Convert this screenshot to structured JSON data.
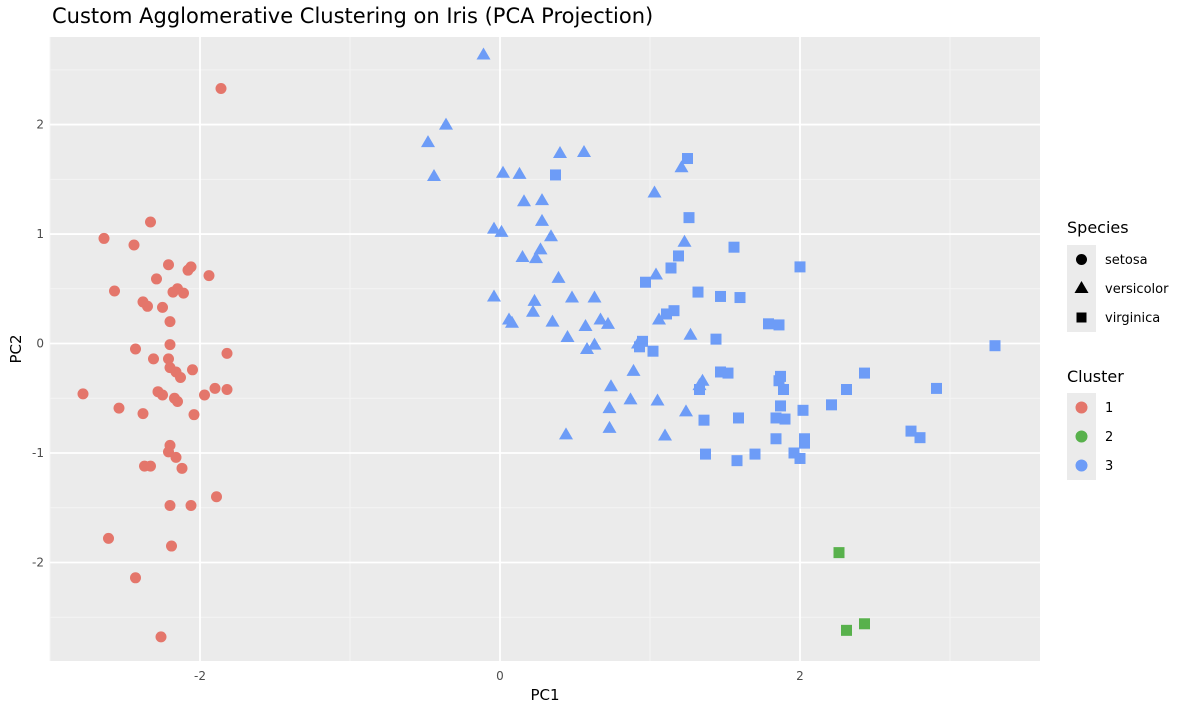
{
  "chart_data": {
    "type": "scatter",
    "title": "Custom Agglomerative Clustering on Iris (PCA Projection)",
    "xlabel": "PC1",
    "ylabel": "PC2",
    "xlim": [
      -3.0,
      3.6
    ],
    "ylim": [
      -2.9,
      2.8
    ],
    "x_ticks": [
      -2,
      0,
      2
    ],
    "y_ticks": [
      -2,
      -1,
      0,
      1,
      2
    ],
    "x_tick_labels": [
      "-2",
      "0",
      "2"
    ],
    "y_tick_labels": [
      "-2",
      "-1",
      "0",
      "1",
      "2"
    ],
    "grid": true,
    "panel_background": "#ebebeb",
    "legend_position": "right",
    "legends": {
      "species": {
        "title": "Species",
        "entries": [
          {
            "label": "setosa",
            "shape": "circle"
          },
          {
            "label": "versicolor",
            "shape": "triangle"
          },
          {
            "label": "virginica",
            "shape": "square"
          }
        ]
      },
      "cluster": {
        "title": "Cluster",
        "entries": [
          {
            "label": "1",
            "color": "#E4766B"
          },
          {
            "label": "2",
            "color": "#58B14C"
          },
          {
            "label": "3",
            "color": "#6D9CF7"
          }
        ]
      }
    },
    "series": [
      {
        "name": "setosa",
        "cluster": "1",
        "shape": "circle",
        "color": "#E4766B",
        "points": [
          [
            -1.86,
            2.33
          ],
          [
            -2.33,
            1.11
          ],
          [
            -2.64,
            0.96
          ],
          [
            -2.44,
            0.9
          ],
          [
            -2.21,
            0.72
          ],
          [
            -2.06,
            0.7
          ],
          [
            -2.08,
            0.67
          ],
          [
            -1.94,
            0.62
          ],
          [
            -2.29,
            0.59
          ],
          [
            -2.57,
            0.48
          ],
          [
            -2.15,
            0.5
          ],
          [
            -2.18,
            0.47
          ],
          [
            -2.11,
            0.46
          ],
          [
            -2.38,
            0.38
          ],
          [
            -2.35,
            0.34
          ],
          [
            -2.25,
            0.33
          ],
          [
            -2.2,
            0.2
          ],
          [
            -2.2,
            -0.01
          ],
          [
            -2.43,
            -0.05
          ],
          [
            -2.31,
            -0.14
          ],
          [
            -2.21,
            -0.14
          ],
          [
            -1.82,
            -0.09
          ],
          [
            -2.2,
            -0.22
          ],
          [
            -2.05,
            -0.24
          ],
          [
            -2.16,
            -0.26
          ],
          [
            -2.13,
            -0.31
          ],
          [
            -2.28,
            -0.44
          ],
          [
            -2.25,
            -0.47
          ],
          [
            -1.9,
            -0.41
          ],
          [
            -1.82,
            -0.42
          ],
          [
            -1.97,
            -0.47
          ],
          [
            -2.78,
            -0.46
          ],
          [
            -2.17,
            -0.5
          ],
          [
            -2.15,
            -0.53
          ],
          [
            -2.54,
            -0.59
          ],
          [
            -2.38,
            -0.64
          ],
          [
            -2.04,
            -0.65
          ],
          [
            -2.2,
            -0.93
          ],
          [
            -2.21,
            -0.99
          ],
          [
            -2.16,
            -1.04
          ],
          [
            -2.37,
            -1.12
          ],
          [
            -2.33,
            -1.12
          ],
          [
            -2.12,
            -1.14
          ],
          [
            -1.89,
            -1.4
          ],
          [
            -2.2,
            -1.48
          ],
          [
            -2.06,
            -1.48
          ],
          [
            -2.61,
            -1.78
          ],
          [
            -2.19,
            -1.85
          ],
          [
            -2.43,
            -2.14
          ],
          [
            -2.26,
            -2.68
          ]
        ]
      },
      {
        "name": "versicolor",
        "cluster": "3",
        "shape": "triangle",
        "color": "#6D9CF7",
        "points": [
          [
            -0.11,
            2.64
          ],
          [
            -0.36,
            2.0
          ],
          [
            -0.48,
            1.84
          ],
          [
            -0.44,
            1.53
          ],
          [
            0.02,
            1.56
          ],
          [
            0.13,
            1.55
          ],
          [
            0.4,
            1.74
          ],
          [
            0.56,
            1.75
          ],
          [
            1.21,
            1.61
          ],
          [
            1.03,
            1.38
          ],
          [
            0.16,
            1.3
          ],
          [
            0.28,
            1.31
          ],
          [
            -0.04,
            1.05
          ],
          [
            0.01,
            1.02
          ],
          [
            0.28,
            1.12
          ],
          [
            0.34,
            0.98
          ],
          [
            0.27,
            0.86
          ],
          [
            0.15,
            0.79
          ],
          [
            0.24,
            0.78
          ],
          [
            1.23,
            0.93
          ],
          [
            0.39,
            0.6
          ],
          [
            1.04,
            0.63
          ],
          [
            -0.04,
            0.43
          ],
          [
            0.48,
            0.42
          ],
          [
            0.63,
            0.42
          ],
          [
            0.23,
            0.39
          ],
          [
            0.22,
            0.29
          ],
          [
            1.06,
            0.22
          ],
          [
            0.06,
            0.22
          ],
          [
            0.08,
            0.19
          ],
          [
            0.35,
            0.2
          ],
          [
            0.57,
            0.16
          ],
          [
            0.67,
            0.22
          ],
          [
            0.72,
            0.18
          ],
          [
            1.27,
            0.08
          ],
          [
            0.45,
            0.06
          ],
          [
            0.63,
            -0.01
          ],
          [
            0.89,
            -0.25
          ],
          [
            1.35,
            -0.34
          ],
          [
            0.74,
            -0.39
          ],
          [
            0.87,
            -0.51
          ],
          [
            1.05,
            -0.52
          ],
          [
            0.73,
            -0.59
          ],
          [
            1.24,
            -0.62
          ],
          [
            0.73,
            -0.77
          ],
          [
            0.44,
            -0.83
          ],
          [
            1.1,
            -0.84
          ],
          [
            1.33,
            -0.38
          ],
          [
            0.92,
            0.0
          ],
          [
            0.58,
            -0.05
          ]
        ]
      },
      {
        "name": "virginica",
        "cluster": "3",
        "shape": "square",
        "color": "#6D9CF7",
        "points": [
          [
            1.25,
            1.69
          ],
          [
            0.37,
            1.54
          ],
          [
            1.26,
            1.15
          ],
          [
            1.56,
            0.88
          ],
          [
            2.0,
            0.7
          ],
          [
            1.19,
            0.8
          ],
          [
            1.14,
            0.69
          ],
          [
            0.97,
            0.56
          ],
          [
            1.32,
            0.47
          ],
          [
            1.47,
            0.43
          ],
          [
            1.6,
            0.42
          ],
          [
            1.16,
            0.3
          ],
          [
            1.11,
            0.27
          ],
          [
            1.79,
            0.18
          ],
          [
            1.86,
            0.17
          ],
          [
            1.44,
            0.04
          ],
          [
            0.95,
            0.02
          ],
          [
            0.93,
            -0.03
          ],
          [
            1.02,
            -0.07
          ],
          [
            3.3,
            -0.02
          ],
          [
            1.47,
            -0.26
          ],
          [
            1.52,
            -0.27
          ],
          [
            2.43,
            -0.27
          ],
          [
            1.87,
            -0.3
          ],
          [
            1.33,
            -0.42
          ],
          [
            1.89,
            -0.42
          ],
          [
            2.31,
            -0.42
          ],
          [
            2.91,
            -0.41
          ],
          [
            2.21,
            -0.56
          ],
          [
            1.87,
            -0.57
          ],
          [
            2.02,
            -0.61
          ],
          [
            1.59,
            -0.68
          ],
          [
            1.84,
            -0.68
          ],
          [
            1.9,
            -0.69
          ],
          [
            1.36,
            -0.7
          ],
          [
            2.74,
            -0.8
          ],
          [
            2.8,
            -0.86
          ],
          [
            1.84,
            -0.87
          ],
          [
            2.03,
            -0.87
          ],
          [
            2.03,
            -0.91
          ],
          [
            1.37,
            -1.01
          ],
          [
            1.96,
            -1.0
          ],
          [
            1.7,
            -1.01
          ],
          [
            2.0,
            -1.05
          ],
          [
            1.58,
            -1.07
          ],
          [
            1.86,
            -0.34
          ]
        ]
      },
      {
        "name": "virginica",
        "cluster": "2",
        "shape": "square",
        "color": "#58B14C",
        "points": [
          [
            2.26,
            -1.91
          ],
          [
            2.31,
            -2.62
          ],
          [
            2.43,
            -2.56
          ]
        ]
      }
    ]
  }
}
